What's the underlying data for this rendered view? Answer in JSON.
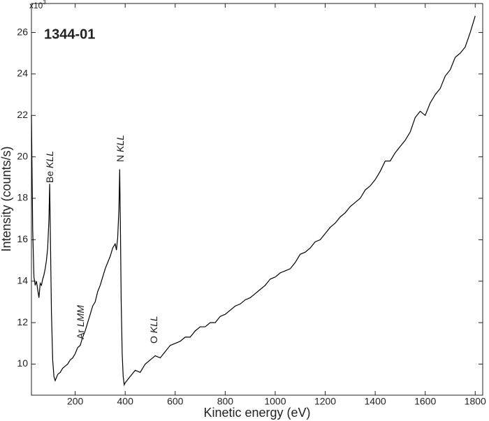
{
  "chart_data": {
    "type": "line",
    "title": "1344-01",
    "x_label": "Kinetic energy (eV)",
    "y_label": "Intensity (counts/s)",
    "y_multiplier": {
      "base": "x10",
      "exponent": "3"
    },
    "annotations": [
      {
        "element": "Be",
        "transition": "KLL"
      },
      {
        "element": "Ar",
        "transition": "LMM"
      },
      {
        "element": "N",
        "transition": "KLL"
      },
      {
        "element": "O",
        "transition": "KLL"
      }
    ],
    "x": [
      25,
      30,
      35,
      40,
      45,
      50,
      55,
      60,
      65,
      70,
      75,
      80,
      85,
      90,
      95,
      98,
      101,
      105,
      110,
      115,
      120,
      130,
      140,
      150,
      160,
      170,
      180,
      190,
      200,
      210,
      220,
      230,
      240,
      250,
      260,
      270,
      280,
      290,
      300,
      310,
      320,
      330,
      340,
      350,
      360,
      365,
      370,
      375,
      378,
      381,
      384,
      388,
      392,
      396,
      400,
      420,
      440,
      460,
      480,
      500,
      520,
      540,
      560,
      580,
      600,
      620,
      640,
      660,
      680,
      700,
      720,
      740,
      760,
      780,
      800,
      820,
      840,
      860,
      880,
      900,
      920,
      940,
      960,
      980,
      1000,
      1020,
      1040,
      1060,
      1080,
      1100,
      1120,
      1140,
      1160,
      1180,
      1200,
      1220,
      1240,
      1260,
      1280,
      1300,
      1320,
      1340,
      1360,
      1380,
      1400,
      1420,
      1440,
      1460,
      1480,
      1500,
      1520,
      1540,
      1560,
      1580,
      1600,
      1620,
      1640,
      1660,
      1680,
      1700,
      1720,
      1740,
      1760,
      1780,
      1800
    ],
    "series": [
      {
        "name": "1344-01",
        "color": "#000000",
        "values": [
          22.0,
          16.5,
          14.2,
          13.8,
          14.0,
          13.6,
          13.2,
          13.9,
          13.8,
          14.1,
          14.3,
          14.6,
          15.0,
          15.6,
          17.0,
          18.7,
          16.0,
          12.5,
          10.2,
          9.4,
          9.2,
          9.5,
          9.6,
          9.8,
          9.9,
          10.0,
          10.2,
          10.3,
          10.5,
          10.8,
          10.9,
          11.3,
          11.6,
          12.0,
          12.4,
          12.8,
          13.0,
          13.5,
          13.8,
          14.2,
          14.6,
          14.9,
          15.2,
          15.6,
          15.8,
          15.5,
          16.1,
          17.5,
          19.4,
          16.5,
          13.0,
          10.5,
          9.4,
          9.0,
          9.1,
          9.4,
          9.7,
          9.6,
          10.0,
          10.2,
          10.4,
          10.3,
          10.6,
          10.9,
          11.0,
          11.1,
          11.3,
          11.3,
          11.6,
          11.8,
          11.8,
          12.0,
          12.0,
          12.3,
          12.4,
          12.6,
          12.8,
          12.9,
          13.1,
          13.2,
          13.4,
          13.6,
          13.8,
          14.1,
          14.2,
          14.4,
          14.5,
          14.6,
          14.9,
          15.3,
          15.4,
          15.6,
          15.9,
          16.0,
          16.3,
          16.6,
          16.8,
          17.1,
          17.3,
          17.6,
          17.8,
          18.0,
          18.4,
          18.6,
          18.9,
          19.3,
          19.8,
          19.8,
          20.2,
          20.5,
          20.8,
          21.2,
          21.9,
          22.2,
          22.0,
          22.6,
          23.0,
          23.3,
          23.9,
          24.2,
          24.8,
          25.0,
          25.3,
          26.0,
          26.8
        ]
      }
    ],
    "xlim": [
      25,
      1830
    ],
    "ylim": [
      8.5,
      27.4
    ],
    "xticks": [
      200,
      400,
      600,
      800,
      1000,
      1200,
      1400,
      1600,
      1800
    ],
    "yticks": [
      10,
      12,
      14,
      16,
      18,
      20,
      22,
      24,
      26
    ],
    "grid": false
  }
}
